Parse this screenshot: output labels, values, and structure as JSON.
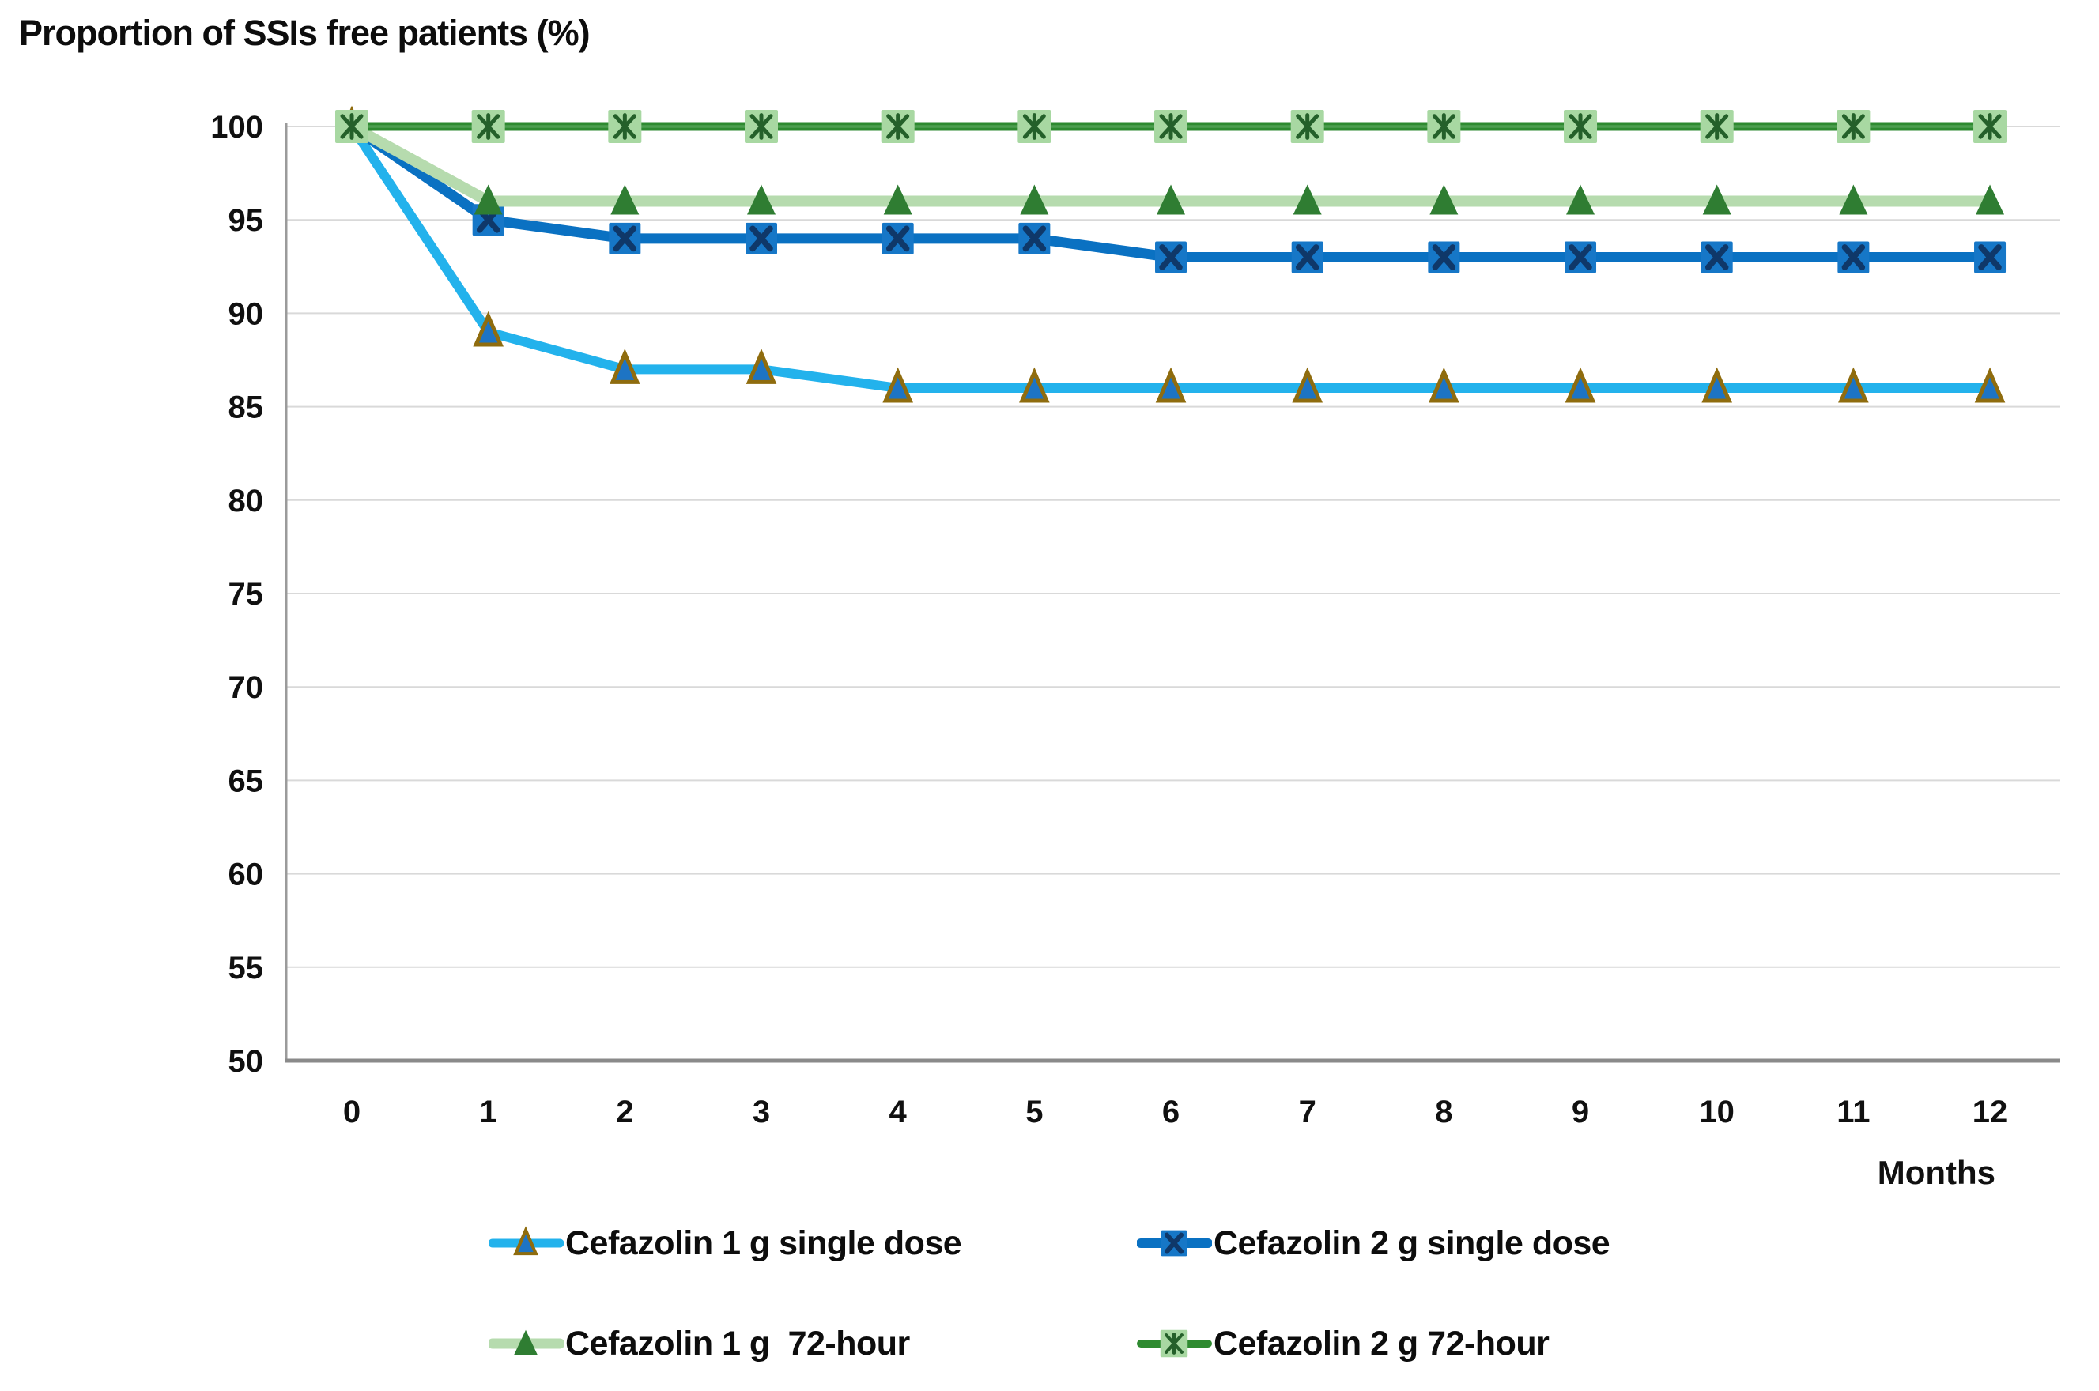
{
  "chart_data": {
    "type": "line",
    "title": "Proportion of SSIs free patients (%)",
    "xlabel": "Months",
    "ylabel": "Proportion of SSIs free patients (%)",
    "x": [
      0,
      1,
      2,
      3,
      4,
      5,
      6,
      7,
      8,
      9,
      10,
      11,
      12
    ],
    "xticks": [
      "0",
      "1",
      "2",
      "3",
      "4",
      "5",
      "6",
      "7",
      "8",
      "9",
      "10",
      "11",
      "12"
    ],
    "yticks": [
      50,
      55,
      60,
      65,
      70,
      75,
      80,
      85,
      90,
      95,
      100
    ],
    "ylim": [
      50,
      100
    ],
    "grid": "horizontal",
    "legend_position": "bottom",
    "axis_color": "#8f8f8f",
    "grid_color": "#d9d9d9",
    "text_color": "#0f0f0f",
    "series": [
      {
        "name": "Cefazolin 1 g single dose",
        "values": [
          100,
          89,
          87,
          87,
          86,
          86,
          86,
          86,
          86,
          86,
          86,
          86,
          86
        ],
        "color": "#23b2ec",
        "marker": "triangle",
        "marker_fill": "#1d74c4",
        "marker_stroke": "#8f6c0e"
      },
      {
        "name": "Cefazolin 2 g single dose",
        "values": [
          100,
          95,
          94,
          94,
          94,
          94,
          93,
          93,
          93,
          93,
          93,
          93,
          93
        ],
        "color": "#0a71c2",
        "marker": "x-square",
        "marker_fill": "#1677c7",
        "marker_stroke": "#0f3869"
      },
      {
        "name": "Cefazolin 1 g  72-hour",
        "values": [
          100,
          96,
          96,
          96,
          96,
          96,
          96,
          96,
          96,
          96,
          96,
          96,
          96
        ],
        "color": "#b6dbae",
        "marker": "triangle",
        "marker_fill": "#2f7d32",
        "marker_stroke": "#2f7d32"
      },
      {
        "name": "Cefazolin 2 g 72-hour",
        "values": [
          100,
          100,
          100,
          100,
          100,
          100,
          100,
          100,
          100,
          100,
          100,
          100,
          100
        ],
        "color": "#2e8a30",
        "marker": "asterisk-square",
        "marker_fill": "#a8d8a2",
        "marker_stroke": "#24602a"
      }
    ]
  }
}
